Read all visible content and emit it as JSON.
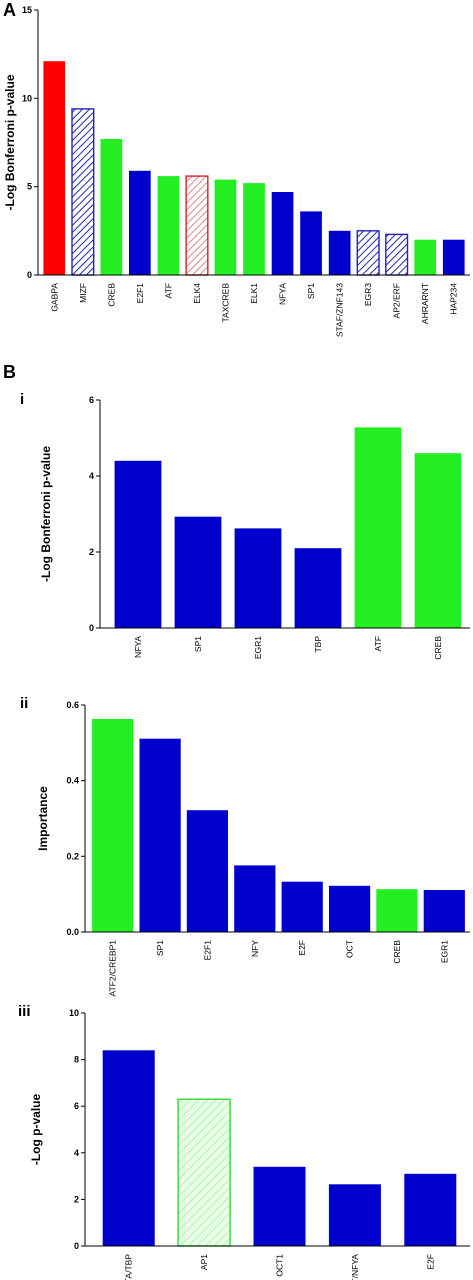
{
  "colors": {
    "blue": "#0000cc",
    "green": "#22ee22",
    "red": "#ff0000",
    "hatch_blue": "#2222bb",
    "hatch_red": "#dd2222",
    "hatch_green": "#33dd33"
  },
  "panel_labels": {
    "A": "A",
    "B": "B",
    "i": "i",
    "ii": "ii",
    "iii": "iii"
  },
  "chart_data": [
    {
      "id": "A",
      "type": "bar",
      "ylabel": "-Log Bonferroni p-value",
      "ylim": [
        0,
        15
      ],
      "yticks": [
        0,
        5,
        10,
        15
      ],
      "categories": [
        "GABPA",
        "MIZF",
        "CREB",
        "E2F1",
        "ATF",
        "ELK4",
        "TAXCREB",
        "ELK1",
        "NFYA",
        "SP1",
        "STAF/ZNF143",
        "EGR3",
        "AP2/ERF",
        "AHRARNT",
        "HAP234"
      ],
      "values": [
        12.1,
        9.4,
        7.7,
        5.9,
        5.6,
        5.6,
        5.4,
        5.2,
        4.7,
        3.6,
        2.5,
        2.5,
        2.3,
        2.0,
        2.0
      ],
      "fills": [
        "red",
        "hatch_blue",
        "green",
        "blue",
        "green",
        "hatch_red",
        "green",
        "green",
        "blue",
        "blue",
        "blue",
        "hatch_blue",
        "hatch_blue",
        "green",
        "blue"
      ]
    },
    {
      "id": "Bi",
      "type": "bar",
      "ylabel": "-Log Bonferroni p-value",
      "ylim": [
        0,
        6
      ],
      "yticks": [
        0,
        2,
        4,
        6
      ],
      "categories": [
        "NFYA",
        "SP1",
        "EGR1",
        "TBP",
        "ATF",
        "CREB"
      ],
      "values": [
        4.4,
        2.93,
        2.62,
        2.1,
        5.28,
        4.6
      ],
      "fills": [
        "blue",
        "blue",
        "blue",
        "blue",
        "green",
        "green"
      ]
    },
    {
      "id": "Bii",
      "type": "bar",
      "ylabel": "Importance",
      "ylim": [
        0,
        0.6
      ],
      "yticks": [
        0.0,
        0.2,
        0.4,
        0.6
      ],
      "categories": [
        "ATF2/CREBP1",
        "SP1",
        "E2F1",
        "NFY",
        "E2F",
        "OCT",
        "CREB",
        "EGR1"
      ],
      "values": [
        0.563,
        0.511,
        0.322,
        0.176,
        0.133,
        0.122,
        0.113,
        0.111
      ],
      "fills": [
        "green",
        "blue",
        "blue",
        "blue",
        "blue",
        "blue",
        "green",
        "blue"
      ]
    },
    {
      "id": "Biii",
      "type": "bar",
      "ylabel": "-Log p-value",
      "ylim": [
        0,
        10
      ],
      "yticks": [
        0,
        2,
        4,
        6,
        8,
        10
      ],
      "categories": [
        "TATA/TBP",
        "AP1",
        "OCT1",
        "CAAT/NFYA",
        "E2F"
      ],
      "values": [
        8.4,
        6.3,
        3.4,
        2.65,
        3.1
      ],
      "fills": [
        "blue",
        "hatch_green",
        "blue",
        "blue",
        "blue"
      ]
    }
  ]
}
